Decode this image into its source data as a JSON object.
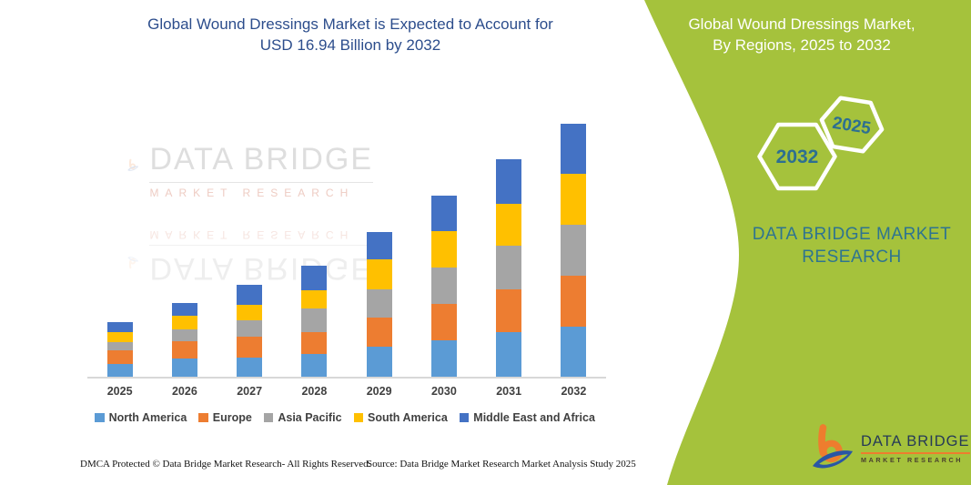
{
  "header": {
    "title_line1": "Global Wound Dressings Market is Expected to Account for",
    "title_line2": "USD 16.94 Billion by 2032",
    "title_color": "#2c4d8c"
  },
  "side_panel": {
    "bg_color": "#a5c23c",
    "title_line1": "Global Wound Dressings Market,",
    "title_line2": "By Regions, 2025 to 2032",
    "hexagons": [
      {
        "label": "2032"
      },
      {
        "label": "2025"
      }
    ],
    "brand_text_line1": "DATA BRIDGE MARKET",
    "brand_text_line2": "RESEARCH",
    "brand_color": "#2e7490"
  },
  "watermark": {
    "name": "DATA BRIDGE",
    "subtitle": "MARKET RESEARCH"
  },
  "logo": {
    "name": "DATA BRIDGE",
    "subtitle": "MARKET RESEARCH",
    "orange": "#ee7d2e",
    "blue": "#2a56a4"
  },
  "footer": {
    "left": "DMCA Protected © Data Bridge Market Research-  All Rights Reserved.",
    "right": "Source: Data Bridge Market Research  Market Analysis Study 2025"
  },
  "chart_data": {
    "type": "bar",
    "stacked": true,
    "title": "Global Wound Dressings Market is Expected to Account for USD 16.94 Billion by 2032",
    "unit": "USD Billion",
    "xlabel": "",
    "ylabel": "",
    "ylim": [
      0,
      18
    ],
    "grid": false,
    "legend_position": "bottom",
    "categories": [
      "2025",
      "2026",
      "2027",
      "2028",
      "2029",
      "2030",
      "2031",
      "2032"
    ],
    "series": [
      {
        "name": "North America",
        "color": "#5b9bd5",
        "values": [
          0.83,
          1.2,
          1.28,
          1.54,
          2.01,
          2.44,
          2.97,
          3.34
        ]
      },
      {
        "name": "Europe",
        "color": "#ed7d31",
        "values": [
          0.91,
          1.16,
          1.38,
          1.46,
          1.95,
          2.44,
          2.91,
          3.46
        ]
      },
      {
        "name": "Asia Pacific",
        "color": "#a5a5a5",
        "values": [
          0.57,
          0.79,
          1.12,
          1.58,
          1.89,
          2.45,
          2.91,
          3.36
        ]
      },
      {
        "name": "South America",
        "color": "#ffc000",
        "values": [
          0.65,
          0.91,
          1.05,
          1.22,
          2.04,
          2.42,
          2.81,
          3.42
        ]
      },
      {
        "name": "Middle East and Africa",
        "color": "#4472c4",
        "values": [
          0.71,
          0.88,
          1.32,
          1.63,
          1.83,
          2.38,
          2.95,
          3.36
        ]
      }
    ],
    "totals": [
      3.67,
      4.94,
      6.15,
      7.43,
      9.72,
      12.13,
      14.55,
      16.94
    ]
  }
}
